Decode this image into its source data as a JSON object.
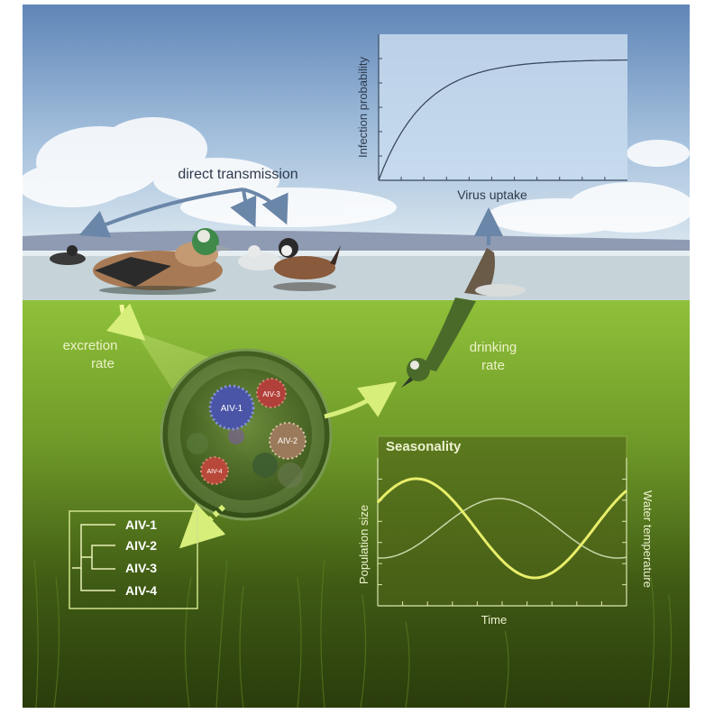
{
  "labels": {
    "direct_transmission": "direct transmission",
    "excretion_rate_line1": "excretion",
    "excretion_rate_line2": "rate",
    "drinking_rate_line1": "drinking",
    "drinking_rate_line2": "rate"
  },
  "virus_particles": [
    {
      "label": "AIV-1",
      "color": "#4a55a8"
    },
    {
      "label": "AIV-3",
      "color": "#b2403a"
    },
    {
      "label": "AIV-2",
      "color": "#9a7a5a"
    },
    {
      "label": "AIV-4",
      "color": "#b8493a"
    }
  ],
  "phylogeny": {
    "taxa": [
      "AIV-1",
      "AIV-2",
      "AIV-3",
      "AIV-4"
    ]
  },
  "chart_data": [
    {
      "type": "line",
      "title": "",
      "xlabel": "Virus uptake",
      "ylabel": "Infection probability",
      "shape": "saturating",
      "x": [
        0,
        1,
        2,
        3,
        4,
        5,
        6,
        7,
        8,
        9,
        10
      ],
      "series": [
        {
          "values": [
            0,
            0.55,
            0.8,
            0.91,
            0.96,
            0.98,
            0.99,
            0.995,
            1,
            1,
            1
          ]
        }
      ],
      "ticks_x": 11,
      "ticks_y": 5
    },
    {
      "type": "line",
      "title": "Seasonality",
      "xlabel": "Time",
      "ylabel": "Population size",
      "ylabel_right": "Water temperature",
      "series": [
        {
          "axis": "left",
          "color": "#e8ee6a",
          "amplitude": 1.0,
          "phase": 0.0
        },
        {
          "axis": "right",
          "color": "#c9d6a8",
          "amplitude": 0.6,
          "phase": -0.35
        }
      ]
    }
  ]
}
